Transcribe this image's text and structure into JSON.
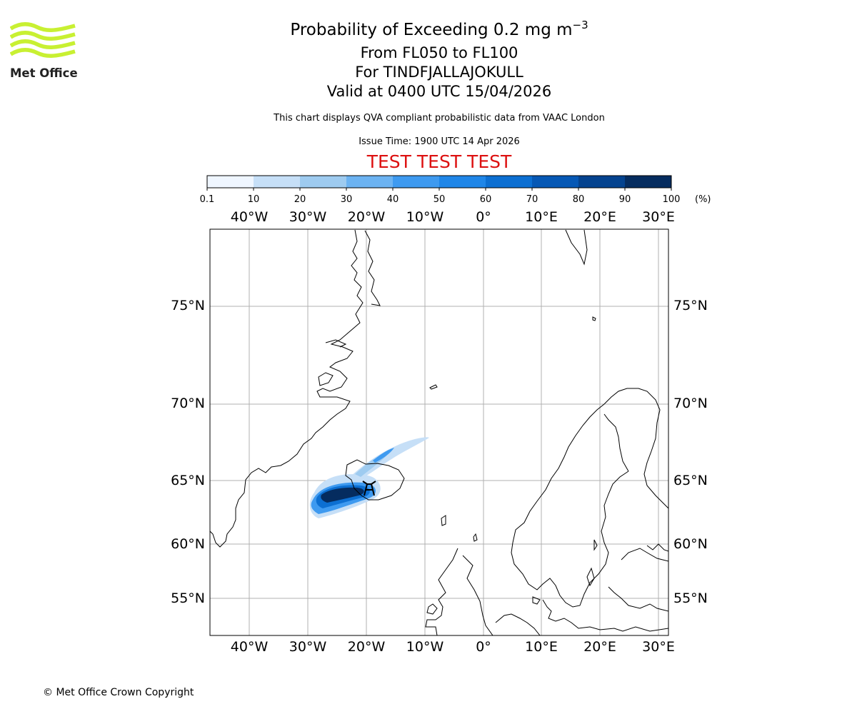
{
  "header": {
    "title_main": "Probability of Exceeding 0.2 mg m",
    "title_sup": "−3",
    "levels": "From FL050 to FL100",
    "volcano": "For TINDFJALLAJOKULL",
    "valid": "Valid at 0400 UTC 15/04/2026",
    "description": "This chart displays QVA compliant probabilistic data from VAAC London",
    "issue_time": "Issue Time: 1900 UTC 14 Apr 2026",
    "test_banner": "TEST TEST TEST"
  },
  "logo": {
    "text": "Met Office",
    "color": "#c8f032"
  },
  "colorbar": {
    "ticks": [
      "0.1",
      "10",
      "20",
      "30",
      "40",
      "50",
      "60",
      "70",
      "80",
      "90",
      "100"
    ],
    "unit": "(%)",
    "colors": [
      "#eff6ff",
      "#c6dff7",
      "#9ecbf0",
      "#6cb3f2",
      "#3e9af0",
      "#1f86e8",
      "#0c6fd2",
      "#0658b5",
      "#04438f",
      "#052c5f"
    ]
  },
  "map": {
    "lon_labels": [
      "40°W",
      "30°W",
      "20°W",
      "10°W",
      "0°",
      "10°E",
      "20°E",
      "30°E"
    ],
    "lat_labels": [
      "75°N",
      "70°N",
      "65°N",
      "60°N",
      "55°N"
    ],
    "volcano_marker": "volcano-symbol"
  },
  "footer": {
    "copyright": "© Met Office Crown Copyright"
  }
}
